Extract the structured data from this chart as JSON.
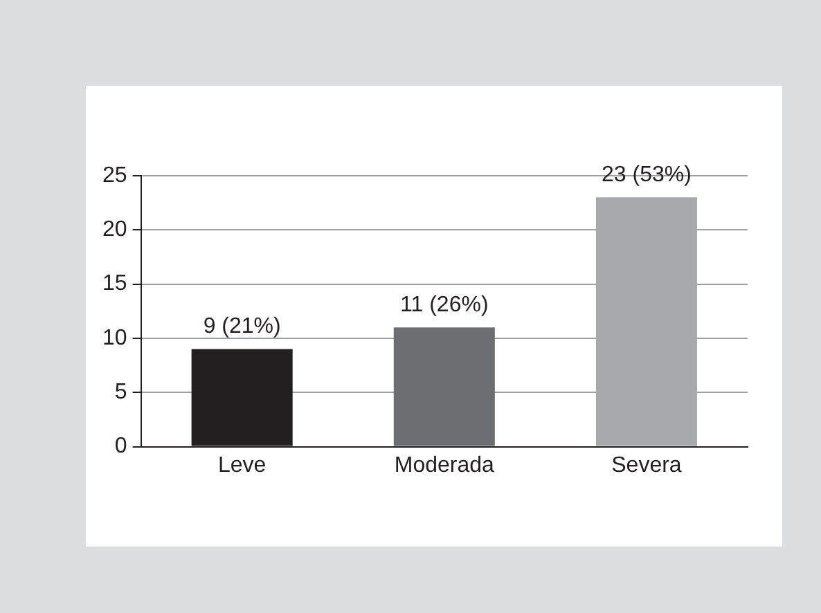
{
  "chart_data": {
    "type": "bar",
    "categories": [
      "Leve",
      "Moderada",
      "Severa"
    ],
    "values": [
      9,
      11,
      23
    ],
    "colors": [
      "#231f20",
      "#6d6e71",
      "#a7a9ac"
    ],
    "value_labels": [
      "9 (21%)",
      "11 (26%)",
      "23 (53%)"
    ],
    "ylim": [
      0,
      25
    ],
    "yticks": [
      0,
      5,
      10,
      15,
      20,
      25
    ],
    "grid": "y"
  }
}
